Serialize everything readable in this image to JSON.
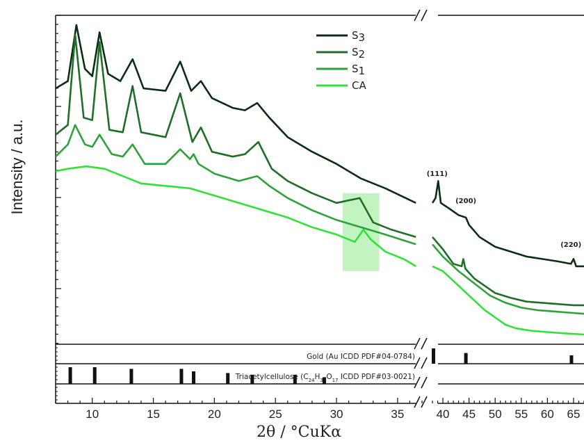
{
  "chart_data": {
    "type": "line",
    "title": "",
    "xlabel": "2θ / °CuKα",
    "ylabel": "Intensity / a.u.",
    "x_ticks_left": [
      10,
      15,
      20,
      25,
      30,
      35
    ],
    "x_ticks_right": [
      40,
      45,
      50,
      55,
      60,
      65
    ],
    "xlim_left": [
      7,
      37
    ],
    "xlim_right": [
      38,
      67
    ],
    "axis_break": true,
    "legend_position": "top-center",
    "series": [
      {
        "name": "S3",
        "color": "#0b2e12",
        "points": [
          [
            7,
            100
          ],
          [
            8,
            103
          ],
          [
            8.7,
            126
          ],
          [
            9.4,
            108
          ],
          [
            10,
            105
          ],
          [
            10.6,
            123
          ],
          [
            11.3,
            106
          ],
          [
            12.3,
            103
          ],
          [
            13.3,
            112
          ],
          [
            14.2,
            100
          ],
          [
            16,
            99
          ],
          [
            17.2,
            111
          ],
          [
            18.1,
            99
          ],
          [
            18.9,
            103
          ],
          [
            19.8,
            96
          ],
          [
            21.5,
            92
          ],
          [
            22.5,
            91
          ],
          [
            23.5,
            94
          ],
          [
            24.5,
            88
          ],
          [
            26,
            80
          ],
          [
            28,
            74
          ],
          [
            30,
            69
          ],
          [
            32,
            63
          ],
          [
            34,
            59
          ],
          [
            36.5,
            53
          ]
        ],
        "points_right": [
          [
            38,
            53
          ],
          [
            38.6,
            55
          ],
          [
            39.1,
            62
          ],
          [
            39.6,
            53
          ],
          [
            41,
            51
          ],
          [
            43,
            48
          ],
          [
            44.4,
            47
          ],
          [
            45,
            44
          ],
          [
            47,
            39
          ],
          [
            50,
            35
          ],
          [
            53,
            33
          ],
          [
            56,
            31
          ],
          [
            59,
            30
          ],
          [
            62,
            29
          ],
          [
            64.5,
            28
          ],
          [
            65,
            30
          ],
          [
            65.5,
            27
          ],
          [
            67,
            27
          ]
        ]
      },
      {
        "name": "S2",
        "color": "#1f6e27",
        "points": [
          [
            7,
            81
          ],
          [
            8,
            85
          ],
          [
            8.6,
            122
          ],
          [
            9.3,
            88
          ],
          [
            10,
            87
          ],
          [
            10.6,
            119
          ],
          [
            11.4,
            83
          ],
          [
            12.5,
            82
          ],
          [
            13.3,
            101
          ],
          [
            14,
            82
          ],
          [
            16,
            80
          ],
          [
            17.2,
            98
          ],
          [
            18.2,
            78
          ],
          [
            18.9,
            84
          ],
          [
            19.8,
            74
          ],
          [
            21.5,
            72
          ],
          [
            22.5,
            73
          ],
          [
            23.6,
            78
          ],
          [
            24.7,
            67
          ],
          [
            26,
            62
          ],
          [
            28,
            57
          ],
          [
            30,
            53
          ],
          [
            31.9,
            55
          ],
          [
            33,
            45
          ],
          [
            34.5,
            42
          ],
          [
            36.5,
            39
          ]
        ],
        "points_right": [
          [
            38,
            39
          ],
          [
            40,
            34
          ],
          [
            42,
            28
          ],
          [
            43.6,
            27
          ],
          [
            43.9,
            30
          ],
          [
            44.3,
            26
          ],
          [
            46,
            22
          ],
          [
            48,
            19
          ],
          [
            50,
            16
          ],
          [
            53,
            14
          ],
          [
            56,
            12.5
          ],
          [
            59,
            12
          ],
          [
            62,
            11.5
          ],
          [
            65,
            11
          ],
          [
            67,
            11
          ]
        ]
      },
      {
        "name": "S1",
        "color": "#2ea23a",
        "points": [
          [
            7,
            72
          ],
          [
            8,
            77
          ],
          [
            8.6,
            85
          ],
          [
            9.4,
            77
          ],
          [
            10,
            76
          ],
          [
            10.6,
            81
          ],
          [
            11.6,
            73
          ],
          [
            12.5,
            72
          ],
          [
            13.3,
            77
          ],
          [
            14.3,
            69
          ],
          [
            16,
            69
          ],
          [
            17.2,
            75
          ],
          [
            18,
            71
          ],
          [
            18.3,
            73
          ],
          [
            18.7,
            69
          ],
          [
            20,
            65
          ],
          [
            22,
            62
          ],
          [
            23.5,
            64
          ],
          [
            24.5,
            60
          ],
          [
            26,
            55
          ],
          [
            28,
            50
          ],
          [
            30,
            46
          ],
          [
            32,
            43
          ],
          [
            34,
            40
          ],
          [
            36.5,
            36
          ]
        ],
        "points_right": [
          [
            38,
            36
          ],
          [
            40,
            31
          ],
          [
            43,
            25
          ],
          [
            46,
            20
          ],
          [
            49,
            15
          ],
          [
            52,
            12
          ],
          [
            55,
            10
          ],
          [
            58,
            9
          ],
          [
            61,
            8.5
          ],
          [
            64,
            8
          ],
          [
            67,
            7.5
          ]
        ]
      },
      {
        "name": "CA",
        "color": "#33e03a",
        "points": [
          [
            7,
            66
          ],
          [
            8,
            67
          ],
          [
            9.5,
            68
          ],
          [
            11,
            67
          ],
          [
            12.5,
            64
          ],
          [
            14,
            61
          ],
          [
            16,
            60
          ],
          [
            18,
            59
          ],
          [
            20,
            56
          ],
          [
            22,
            53
          ],
          [
            24,
            50
          ],
          [
            26,
            47
          ],
          [
            28,
            43
          ],
          [
            30,
            40
          ],
          [
            31.5,
            37
          ],
          [
            32.2,
            42
          ],
          [
            32.8,
            38
          ],
          [
            34,
            33
          ],
          [
            35.5,
            30
          ],
          [
            36.5,
            27
          ]
        ],
        "points_right": [
          [
            38,
            27
          ],
          [
            40,
            25
          ],
          [
            42,
            21
          ],
          [
            44,
            17
          ],
          [
            46,
            13
          ],
          [
            48,
            9
          ],
          [
            50,
            6
          ],
          [
            52,
            3
          ],
          [
            54,
            1.5
          ],
          [
            57,
            0.5
          ],
          [
            60,
            0
          ],
          [
            63,
            -0.5
          ],
          [
            67,
            -1
          ]
        ]
      }
    ],
    "peak_labels": [
      {
        "text": "(111)",
        "x": 38.9,
        "y": 64
      },
      {
        "text": "(200)",
        "x": 44.4,
        "y": 53
      },
      {
        "text": "(220)",
        "x": 64.5,
        "y": 35
      }
    ],
    "highlight_region": {
      "x": [
        30.5,
        33.5
      ],
      "y": [
        25,
        57
      ],
      "color": "#a8f0a8"
    },
    "reference_patterns": [
      {
        "label": "Gold (Au ICDD PDF#04-0784)",
        "peaks": [
          [
            38.2,
            1.0
          ],
          [
            44.4,
            0.7
          ],
          [
            64.6,
            0.55
          ]
        ]
      },
      {
        "label_prefix": "Triacetylcellulose (C",
        "sub1": "24",
        "mid1": "H",
        "sub2": "32",
        "mid2": "O",
        "sub3": "17",
        "label_suffix": " ICDD PDF#03-0021)",
        "peaks": [
          [
            8.2,
            1.0
          ],
          [
            10.2,
            1.0
          ],
          [
            13.2,
            0.9
          ],
          [
            17.3,
            0.9
          ],
          [
            18.3,
            0.75
          ],
          [
            21.1,
            0.65
          ],
          [
            23.1,
            0.55
          ],
          [
            26.6,
            0.55
          ],
          [
            29.0,
            0.4
          ]
        ]
      }
    ]
  }
}
